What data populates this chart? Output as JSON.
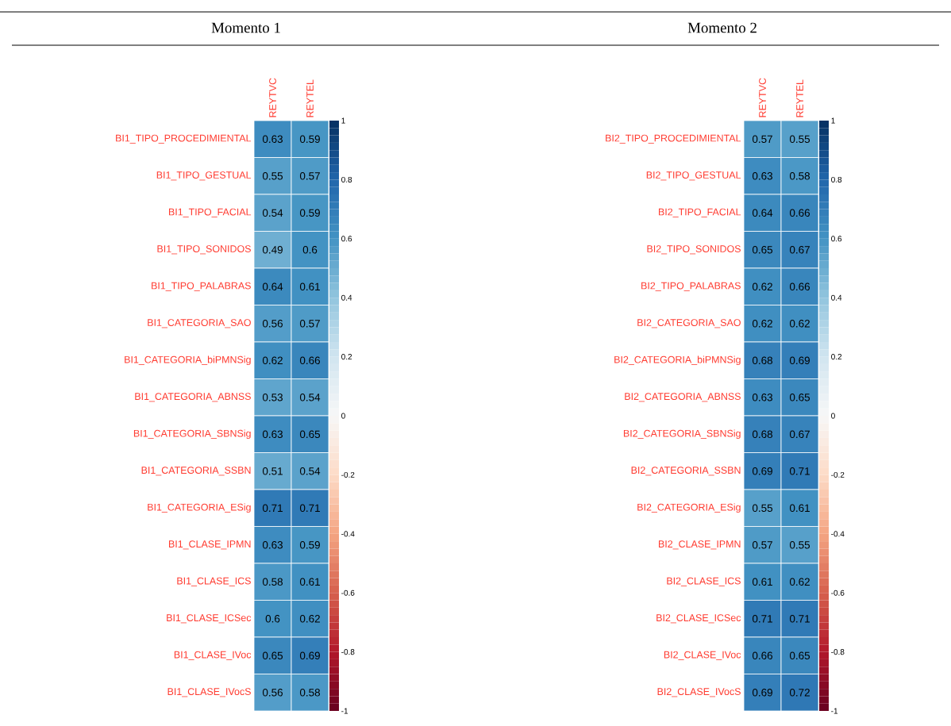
{
  "chart_data": [
    {
      "type": "heatmap",
      "title": "Momento 1",
      "categories": [
        "REYTVC",
        "REYTEL"
      ],
      "y_categories": [
        "BI1_TIPO_PROCEDIMIENTAL",
        "BI1_TIPO_GESTUAL",
        "BI1_TIPO_FACIAL",
        "BI1_TIPO_SONIDOS",
        "BI1_TIPO_PALABRAS",
        "BI1_CATEGORIA_SAO",
        "BI1_CATEGORIA_biPMNSig",
        "BI1_CATEGORIA_ABNSS",
        "BI1_CATEGORIA_SBNSig",
        "BI1_CATEGORIA_SSBN",
        "BI1_CATEGORIA_ESig",
        "BI1_CLASE_IPMN",
        "BI1_CLASE_ICS",
        "BI1_CLASE_ICSec",
        "BI1_CLASE_IVoc",
        "BI1_CLASE_IVocS"
      ],
      "cells": [
        [
          0.63,
          0.59
        ],
        [
          0.55,
          0.57
        ],
        [
          0.54,
          0.59
        ],
        [
          0.49,
          0.6
        ],
        [
          0.64,
          0.61
        ],
        [
          0.56,
          0.57
        ],
        [
          0.62,
          0.66
        ],
        [
          0.53,
          0.54
        ],
        [
          0.63,
          0.65
        ],
        [
          0.51,
          0.54
        ],
        [
          0.71,
          0.71
        ],
        [
          0.63,
          0.59
        ],
        [
          0.58,
          0.61
        ],
        [
          0.6,
          0.62
        ],
        [
          0.65,
          0.69
        ],
        [
          0.56,
          0.58
        ]
      ],
      "clim": [
        -1,
        1
      ],
      "cticks": [
        1,
        0.8,
        0.6,
        0.4,
        0.2,
        0,
        -0.2,
        -0.4,
        -0.6,
        -0.8,
        -1
      ],
      "data_labels": true
    },
    {
      "type": "heatmap",
      "title": "Momento 2",
      "categories": [
        "REYTVC",
        "REYTEL"
      ],
      "y_categories": [
        "BI2_TIPO_PROCEDIMIENTAL",
        "BI2_TIPO_GESTUAL",
        "BI2_TIPO_FACIAL",
        "BI2_TIPO_SONIDOS",
        "BI2_TIPO_PALABRAS",
        "BI2_CATEGORIA_SAO",
        "BI2_CATEGORIA_biPMNSig",
        "BI2_CATEGORIA_ABNSS",
        "BI2_CATEGORIA_SBNSig",
        "BI2_CATEGORIA_SSBN",
        "BI2_CATEGORIA_ESig",
        "BI2_CLASE_IPMN",
        "BI2_CLASE_ICS",
        "BI2_CLASE_ICSec",
        "BI2_CLASE_IVoc",
        "BI2_CLASE_IVocS"
      ],
      "cells": [
        [
          0.57,
          0.55
        ],
        [
          0.63,
          0.58
        ],
        [
          0.64,
          0.66
        ],
        [
          0.65,
          0.67
        ],
        [
          0.62,
          0.66
        ],
        [
          0.62,
          0.62
        ],
        [
          0.68,
          0.69
        ],
        [
          0.63,
          0.65
        ],
        [
          0.68,
          0.67
        ],
        [
          0.69,
          0.71
        ],
        [
          0.55,
          0.61
        ],
        [
          0.57,
          0.55
        ],
        [
          0.61,
          0.62
        ],
        [
          0.71,
          0.71
        ],
        [
          0.66,
          0.65
        ],
        [
          0.69,
          0.72
        ]
      ],
      "clim": [
        -1,
        1
      ],
      "cticks": [
        1,
        0.8,
        0.6,
        0.4,
        0.2,
        0,
        -0.2,
        -0.4,
        -0.6,
        -0.8,
        -1
      ],
      "data_labels": true
    }
  ]
}
